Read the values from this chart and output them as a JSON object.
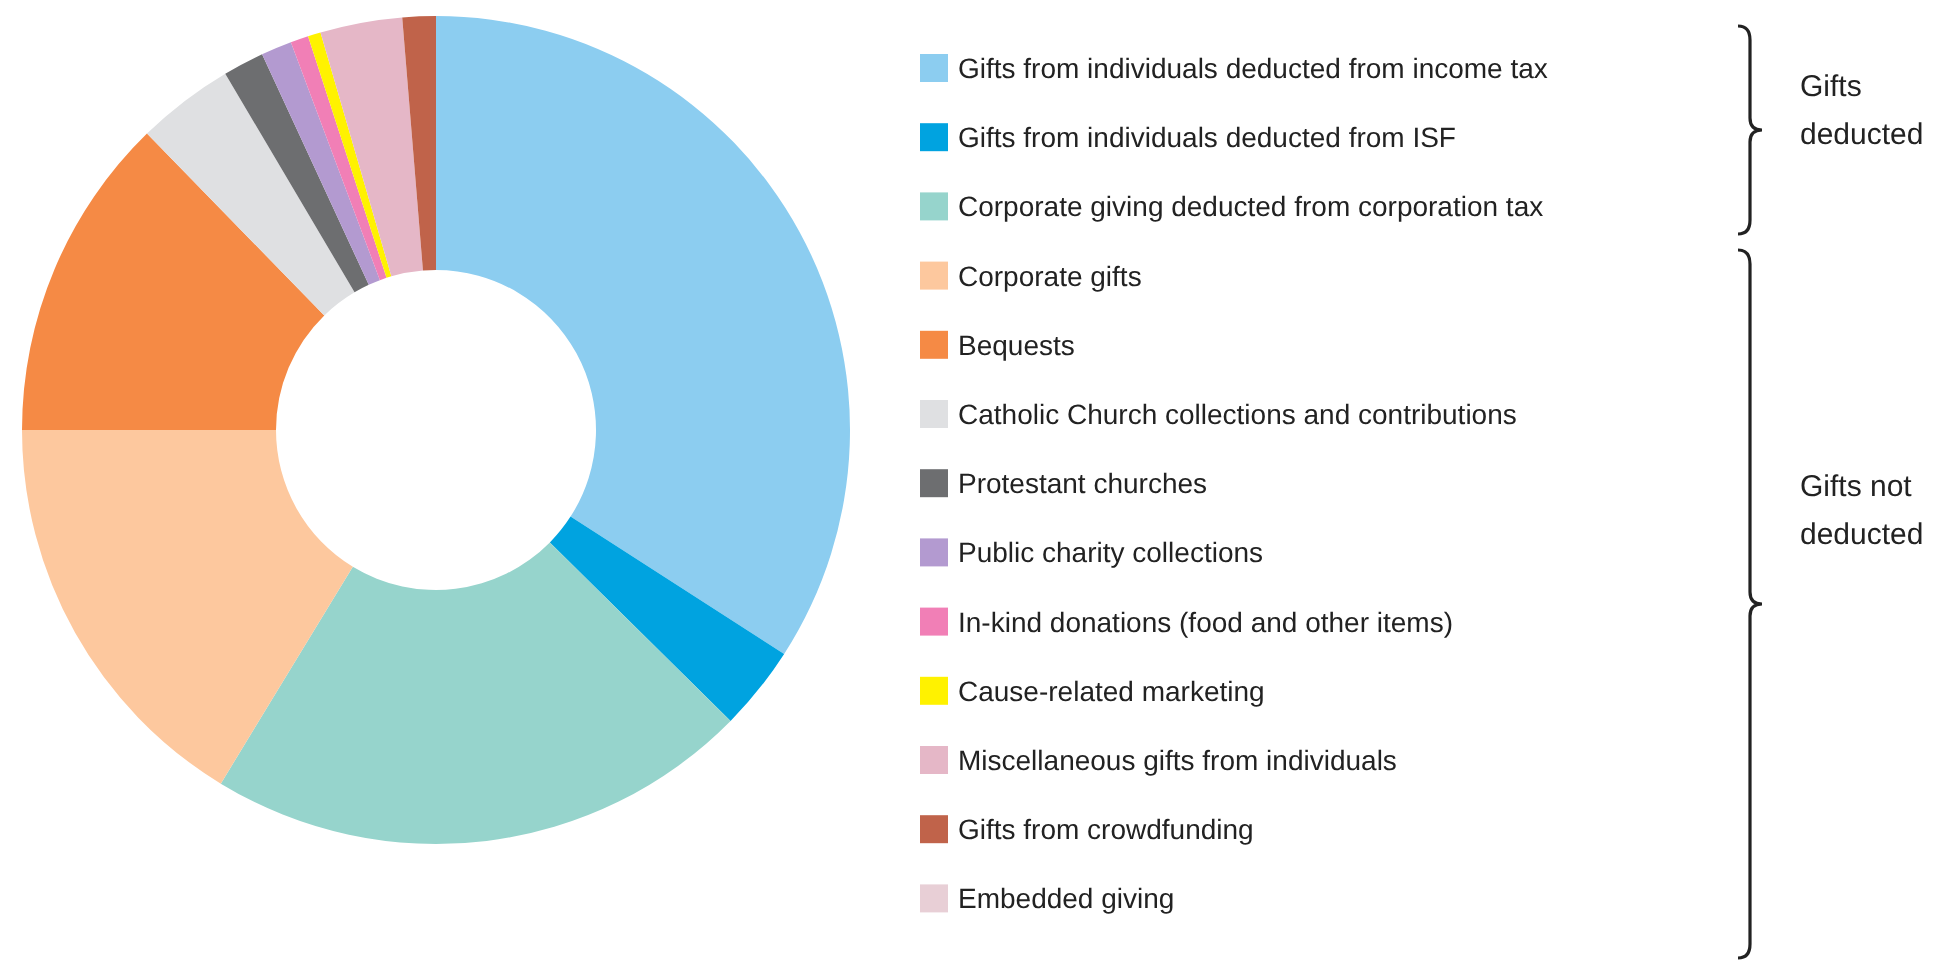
{
  "chart_data": {
    "type": "donut",
    "categories": [
      "Gifts from individuals deducted from income tax",
      "Gifts from individuals deducted from ISF",
      "Corporate giving deducted from corporation tax",
      "Corporate gifts",
      "Bequests",
      "Catholic Church collections and contributions",
      "Protestant churches",
      "Public charity collections",
      "In-kind donations (food and other items)",
      "Cause-related marketing",
      "Miscellaneous gifts from individuals",
      "Gifts from crowdfunding",
      "Embedded giving"
    ],
    "values": [
      34.1,
      3.3,
      21.3,
      16.3,
      12.7,
      3.8,
      1.6,
      1.2,
      0.7,
      0.5,
      3.2,
      1.3,
      0
    ],
    "colors": [
      "#8ccdf0",
      "#00a3e0",
      "#96d4cc",
      "#fdc89e",
      "#f58a45",
      "#dfe0e2",
      "#6d6e70",
      "#b39ad0",
      "#f17fb6",
      "#fff200",
      "#e5b7c7",
      "#c0634a",
      "#e8cfd6"
    ],
    "legend": "right",
    "annotations": [
      "Gifts deducted",
      "Gifts not deducted"
    ]
  }
}
